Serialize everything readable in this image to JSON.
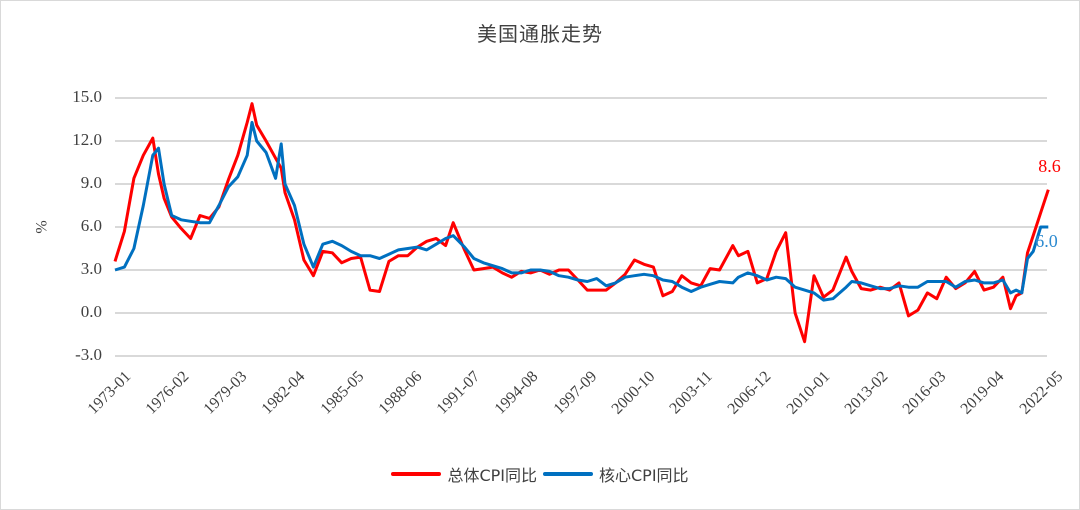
{
  "chart_data": {
    "type": "line",
    "title": "美国通胀走势",
    "xlabel": "",
    "ylabel": "%",
    "ylim": [
      -3.0,
      15.0
    ],
    "yticks": [
      "15.0",
      "12.0",
      "9.0",
      "6.0",
      "3.0",
      "0.0",
      "-3.0"
    ],
    "xticks": [
      "1973-01",
      "1976-02",
      "1979-03",
      "1982-04",
      "1985-05",
      "1988-06",
      "1991-07",
      "1994-08",
      "1997-09",
      "2000-10",
      "2003-11",
      "2006-12",
      "2010-01",
      "2013-02",
      "2016-03",
      "2019-04",
      "2022-05"
    ],
    "grid": true,
    "legend_position": "bottom",
    "x": [
      1973.0,
      1973.5,
      1974.0,
      1974.5,
      1975.0,
      1975.3,
      1975.6,
      1976.0,
      1976.5,
      1977.0,
      1977.5,
      1978.0,
      1978.5,
      1979.0,
      1979.5,
      1980.0,
      1980.25,
      1980.5,
      1981.0,
      1981.5,
      1981.8,
      1982.0,
      1982.5,
      1983.0,
      1983.5,
      1984.0,
      1984.5,
      1985.0,
      1985.5,
      1986.0,
      1986.5,
      1987.0,
      1987.5,
      1988.0,
      1988.5,
      1989.0,
      1989.5,
      1990.0,
      1990.5,
      1990.9,
      1991.5,
      1992.0,
      1992.5,
      1993.0,
      1993.5,
      1994.0,
      1994.5,
      1995.0,
      1995.5,
      1996.0,
      1996.5,
      1997.0,
      1997.5,
      1998.0,
      1998.5,
      1999.0,
      1999.5,
      2000.0,
      2000.5,
      2001.0,
      2001.5,
      2002.0,
      2002.5,
      2003.0,
      2003.5,
      2004.0,
      2004.5,
      2005.0,
      2005.7,
      2006.0,
      2006.5,
      2007.0,
      2007.5,
      2008.0,
      2008.5,
      2009.0,
      2009.5,
      2010.0,
      2010.5,
      2011.0,
      2011.7,
      2012.0,
      2012.5,
      2013.0,
      2013.5,
      2014.0,
      2014.5,
      2015.0,
      2015.5,
      2016.0,
      2016.5,
      2017.0,
      2017.5,
      2018.0,
      2018.5,
      2019.0,
      2019.5,
      2020.0,
      2020.4,
      2020.7,
      2021.0,
      2021.3,
      2021.6,
      2022.0,
      2022.4
    ],
    "series": [
      {
        "name": "总体CPI同比",
        "color": "#ff0000",
        "values": [
          3.6,
          5.7,
          9.4,
          11.0,
          12.2,
          9.7,
          8.0,
          6.7,
          5.9,
          5.2,
          6.8,
          6.6,
          7.4,
          9.3,
          11.0,
          13.3,
          14.6,
          13.1,
          12.0,
          10.8,
          10.1,
          8.4,
          6.5,
          3.7,
          2.6,
          4.3,
          4.2,
          3.5,
          3.8,
          3.9,
          1.6,
          1.5,
          3.6,
          4.0,
          4.0,
          4.6,
          5.0,
          5.2,
          4.7,
          6.3,
          4.4,
          3.0,
          3.1,
          3.2,
          2.8,
          2.5,
          2.9,
          2.8,
          3.0,
          2.7,
          3.0,
          3.0,
          2.3,
          1.6,
          1.6,
          1.6,
          2.1,
          2.7,
          3.7,
          3.4,
          3.2,
          1.2,
          1.5,
          2.6,
          2.1,
          1.9,
          3.1,
          3.0,
          4.7,
          4.0,
          4.3,
          2.1,
          2.4,
          4.3,
          5.6,
          0.0,
          -2.0,
          2.6,
          1.1,
          1.6,
          3.9,
          2.9,
          1.7,
          1.6,
          1.8,
          1.6,
          2.1,
          -0.2,
          0.2,
          1.4,
          1.0,
          2.5,
          1.7,
          2.1,
          2.9,
          1.6,
          1.8,
          2.5,
          0.3,
          1.2,
          1.4,
          4.2,
          5.4,
          7.0,
          8.6
        ]
      },
      {
        "name": "核心CPI同比",
        "color": "#0070c0",
        "values": [
          3.0,
          3.2,
          4.5,
          7.5,
          11.0,
          11.5,
          9.0,
          6.8,
          6.5,
          6.4,
          6.3,
          6.3,
          7.5,
          8.8,
          9.5,
          11.0,
          13.3,
          12.0,
          11.2,
          9.4,
          11.8,
          9.0,
          7.5,
          4.8,
          3.2,
          4.8,
          5.0,
          4.7,
          4.3,
          4.0,
          4.0,
          3.8,
          4.1,
          4.4,
          4.5,
          4.6,
          4.4,
          4.8,
          5.2,
          5.4,
          4.6,
          3.8,
          3.5,
          3.3,
          3.1,
          2.8,
          2.8,
          3.0,
          3.0,
          2.9,
          2.6,
          2.5,
          2.3,
          2.2,
          2.4,
          1.9,
          2.1,
          2.5,
          2.6,
          2.7,
          2.6,
          2.3,
          2.2,
          1.8,
          1.5,
          1.8,
          2.0,
          2.2,
          2.1,
          2.5,
          2.8,
          2.6,
          2.3,
          2.5,
          2.4,
          1.8,
          1.6,
          1.4,
          0.9,
          1.0,
          1.8,
          2.2,
          2.1,
          1.9,
          1.7,
          1.7,
          1.9,
          1.8,
          1.8,
          2.2,
          2.2,
          2.2,
          1.8,
          2.2,
          2.3,
          2.1,
          2.1,
          2.3,
          1.4,
          1.6,
          1.4,
          3.8,
          4.3,
          6.0,
          6.0
        ]
      }
    ],
    "annotations": [
      {
        "text": "8.6",
        "series": "总体CPI同比",
        "color": "#ff0000"
      },
      {
        "text": "6.0",
        "series": "核心CPI同比",
        "color": "#2e8bd0"
      }
    ]
  },
  "legend": {
    "items": [
      {
        "label": "总体CPI同比",
        "color": "#ff0000"
      },
      {
        "label": "核心CPI同比",
        "color": "#0070c0"
      }
    ]
  }
}
